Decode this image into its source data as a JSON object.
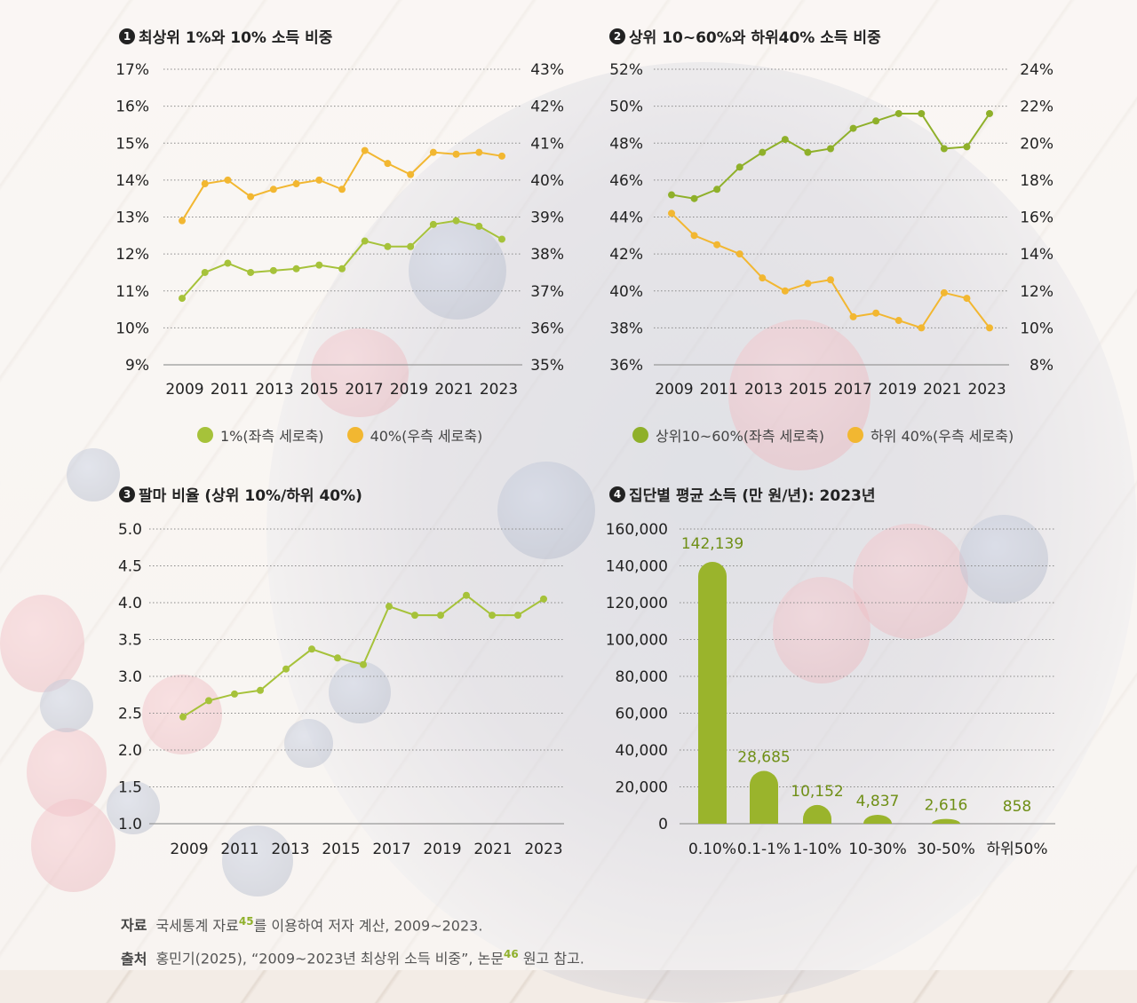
{
  "colors": {
    "green": "#a6c23a",
    "yellow": "#f2b731",
    "bar_green": "#9ab42c",
    "grid": "#8a8a8a",
    "text": "#222222"
  },
  "chart_data": [
    {
      "id": "c1",
      "type": "line",
      "number": "1",
      "title": "최상위 1%와 10% 소득 비중",
      "x": [
        2009,
        2010,
        2011,
        2012,
        2013,
        2014,
        2015,
        2016,
        2017,
        2018,
        2019,
        2020,
        2021,
        2022,
        2023
      ],
      "x_tick_labels": [
        "2009",
        "2011",
        "2013",
        "2015",
        "2017",
        "2019",
        "2021",
        "2023"
      ],
      "left_axis": {
        "min": 9,
        "max": 17,
        "ticks": [
          "17%",
          "16%",
          "15%",
          "14%",
          "13%",
          "12%",
          "11%",
          "10%",
          "9%"
        ]
      },
      "right_axis": {
        "min": 35,
        "max": 43,
        "ticks": [
          "43%",
          "42%",
          "41%",
          "40%",
          "39%",
          "38%",
          "37%",
          "36%",
          "35%"
        ]
      },
      "series": [
        {
          "name": "1%(좌측 세로축)",
          "axis": "left",
          "color": "#a6c23a",
          "values": [
            10.8,
            11.5,
            11.75,
            11.5,
            11.55,
            11.6,
            11.7,
            11.6,
            12.35,
            12.2,
            12.2,
            12.8,
            12.9,
            12.75,
            12.4
          ]
        },
        {
          "name": "40%(우측 세로축)",
          "axis": "right",
          "color": "#f2b731",
          "values": [
            38.9,
            39.9,
            40.0,
            39.55,
            39.75,
            39.9,
            40.0,
            39.75,
            40.8,
            40.45,
            40.15,
            40.75,
            40.7,
            40.75,
            40.65
          ]
        }
      ]
    },
    {
      "id": "c2",
      "type": "line",
      "number": "2",
      "title": "상위 10~60%와 하위40% 소득 비중",
      "x": [
        2009,
        2010,
        2011,
        2012,
        2013,
        2014,
        2015,
        2016,
        2017,
        2018,
        2019,
        2020,
        2021,
        2022,
        2023
      ],
      "x_tick_labels": [
        "2009",
        "2011",
        "2013",
        "2015",
        "2017",
        "2019",
        "2021",
        "2023"
      ],
      "left_axis": {
        "min": 36,
        "max": 52,
        "ticks": [
          "52%",
          "50%",
          "48%",
          "46%",
          "44%",
          "42%",
          "40%",
          "38%",
          "36%"
        ]
      },
      "right_axis": {
        "min": 8,
        "max": 24,
        "ticks": [
          "24%",
          "22%",
          "20%",
          "18%",
          "16%",
          "14%",
          "12%",
          "10%",
          "8%"
        ]
      },
      "series": [
        {
          "name": "상위10~60%(좌측 세로축)",
          "axis": "left",
          "color": "#8fb02a",
          "values": [
            45.2,
            45.0,
            45.5,
            46.7,
            47.5,
            48.2,
            47.5,
            47.7,
            48.8,
            49.2,
            49.6,
            49.6,
            47.7,
            47.8,
            49.6
          ]
        },
        {
          "name": "하위 40%(우측 세로축)",
          "axis": "right",
          "color": "#f2b731",
          "values": [
            16.2,
            15.0,
            14.5,
            14.0,
            12.7,
            12.0,
            12.4,
            12.6,
            10.6,
            10.8,
            10.4,
            10.0,
            11.9,
            11.6,
            10.0
          ]
        }
      ]
    },
    {
      "id": "c3",
      "type": "line",
      "number": "3",
      "title": "팔마 비율 (상위 10%/하위 40%)",
      "x": [
        2009,
        2010,
        2011,
        2012,
        2013,
        2014,
        2015,
        2016,
        2017,
        2018,
        2019,
        2020,
        2021,
        2022,
        2023
      ],
      "x_tick_labels": [
        "2009",
        "2011",
        "2013",
        "2015",
        "2017",
        "2019",
        "2021",
        "2023"
      ],
      "y_axis": {
        "min": 1.0,
        "max": 5.0,
        "ticks": [
          "5.0",
          "4.5",
          "4.0",
          "3.5",
          "3.0",
          "2.5",
          "2.0",
          "1.5",
          "1.0"
        ]
      },
      "series": [
        {
          "name": "팔마 비율",
          "color": "#a6c23a",
          "values": [
            2.45,
            2.67,
            2.76,
            2.81,
            3.1,
            3.37,
            3.25,
            3.16,
            3.95,
            3.83,
            3.83,
            4.1,
            3.83,
            3.83,
            4.05
          ]
        }
      ]
    },
    {
      "id": "c4",
      "type": "bar",
      "number": "4",
      "title": "집단별 평균 소득 (만 원/년): 2023년",
      "categories": [
        "0.10%",
        "0.1-1%",
        "1-10%",
        "10-30%",
        "30-50%",
        "하위50%"
      ],
      "values": [
        142139,
        28685,
        10152,
        4837,
        2616,
        858
      ],
      "value_labels": [
        "142,139",
        "28,685",
        "10,152",
        "4,837",
        "2,616",
        "858"
      ],
      "y_axis": {
        "min": 0,
        "max": 160000,
        "ticks": [
          "160,000",
          "140,000",
          "120,000",
          "100,000",
          "80,000",
          "60,000",
          "40,000",
          "20,000",
          "0"
        ]
      }
    }
  ],
  "legends": {
    "c1": [
      "1%(좌측 세로축)",
      "40%(우측 세로축)"
    ],
    "c2": [
      "상위10~60%(좌측 세로축)",
      "하위 40%(우측 세로축)"
    ]
  },
  "notes": {
    "source_label": "자료",
    "source_text_a": "국세통계 자료",
    "source_sup": "45",
    "source_text_b": "를 이용하여 저자 계산, 2009~2023.",
    "origin_label": "출처",
    "origin_text_a": "홍민기(2025), “2009~2023년 최상위 소득 비중”, 논문",
    "origin_sup": "46",
    "origin_text_b": " 원고 참고."
  }
}
